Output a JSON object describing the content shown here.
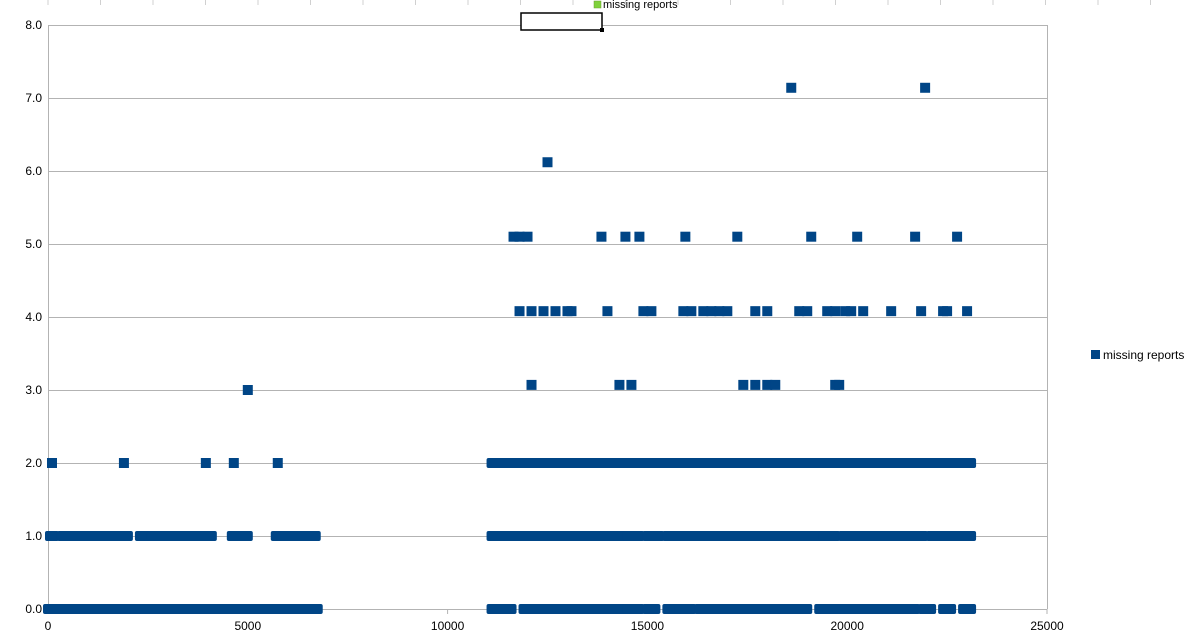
{
  "chart_data": {
    "type": "scatter",
    "xlim": [
      0,
      25000
    ],
    "ylim": [
      0,
      8
    ],
    "x_ticks": [
      0,
      5000,
      10000,
      15000,
      20000,
      25000
    ],
    "y_ticks": [
      "0.0",
      "1.0",
      "2.0",
      "3.0",
      "4.0",
      "5.0",
      "6.0",
      "7.0",
      "8.0"
    ],
    "grid": "horizontal",
    "legend_placement": "right",
    "title_fragment": "missing reports",
    "marker_color": "#004586",
    "title_marker_color": "#7fd13b",
    "series": [
      {
        "name": "missing reports",
        "bands": [
          {
            "y": 0,
            "ranges": [
              [
                0,
                6750
              ],
              [
                11100,
                11600
              ],
              [
                11900,
                14500
              ],
              [
                14500,
                14800
              ],
              [
                15000,
                15200
              ],
              [
                15500,
                15800
              ],
              [
                15800,
                16100
              ],
              [
                16300,
                19000
              ],
              [
                19300,
                20300
              ],
              [
                20300,
                21700
              ],
              [
                21900,
                22100
              ],
              [
                22400,
                22600
              ],
              [
                22900,
                23100
              ]
            ]
          },
          {
            "y": 1,
            "ranges": [
              [
                50,
                150
              ],
              [
                350,
                2000
              ],
              [
                2300,
                2500
              ],
              [
                2600,
                4100
              ],
              [
                4600,
                5000
              ],
              [
                5700,
                6700
              ],
              [
                11100,
                14400
              ],
              [
                14500,
                14800
              ],
              [
                15000,
                15300
              ],
              [
                15500,
                19300
              ],
              [
                19400,
                19700
              ],
              [
                19900,
                20200
              ],
              [
                20300,
                21900
              ],
              [
                22100,
                23100
              ]
            ]
          },
          {
            "y": 2,
            "ranges": [
              [
                11100,
                23100
              ]
            ]
          }
        ],
        "points": [
          [
            100,
            2
          ],
          [
            1900,
            2
          ],
          [
            3950,
            2
          ],
          [
            4650,
            2
          ],
          [
            5750,
            2
          ],
          [
            5000,
            3
          ],
          [
            12100,
            3.07
          ],
          [
            14300,
            3.07
          ],
          [
            14600,
            3.07
          ],
          [
            17400,
            3.07
          ],
          [
            17700,
            3.07
          ],
          [
            18000,
            3.07
          ],
          [
            18200,
            3.07
          ],
          [
            19700,
            3.07
          ],
          [
            19800,
            3.07
          ],
          [
            11800,
            4.08
          ],
          [
            12100,
            4.08
          ],
          [
            12400,
            4.08
          ],
          [
            12700,
            4.08
          ],
          [
            13000,
            4.08
          ],
          [
            13100,
            4.08
          ],
          [
            14000,
            4.08
          ],
          [
            14900,
            4.08
          ],
          [
            15100,
            4.08
          ],
          [
            15900,
            4.08
          ],
          [
            16100,
            4.08
          ],
          [
            16400,
            4.08
          ],
          [
            16600,
            4.08
          ],
          [
            16800,
            4.08
          ],
          [
            17000,
            4.08
          ],
          [
            17700,
            4.08
          ],
          [
            18000,
            4.08
          ],
          [
            18800,
            4.08
          ],
          [
            19000,
            4.08
          ],
          [
            19500,
            4.08
          ],
          [
            19700,
            4.08
          ],
          [
            19950,
            4.08
          ],
          [
            20100,
            4.08
          ],
          [
            20400,
            4.08
          ],
          [
            21100,
            4.08
          ],
          [
            21850,
            4.08
          ],
          [
            22400,
            4.08
          ],
          [
            22500,
            4.08
          ],
          [
            23000,
            4.08
          ],
          [
            11650,
            5.1
          ],
          [
            11800,
            5.1
          ],
          [
            12000,
            5.1
          ],
          [
            13850,
            5.1
          ],
          [
            14450,
            5.1
          ],
          [
            14800,
            5.1
          ],
          [
            15950,
            5.1
          ],
          [
            17250,
            5.1
          ],
          [
            19100,
            5.1
          ],
          [
            20250,
            5.1
          ],
          [
            21700,
            5.1
          ],
          [
            22750,
            5.1
          ],
          [
            12500,
            6.12
          ],
          [
            18600,
            7.14
          ],
          [
            21950,
            7.14
          ]
        ]
      }
    ]
  }
}
